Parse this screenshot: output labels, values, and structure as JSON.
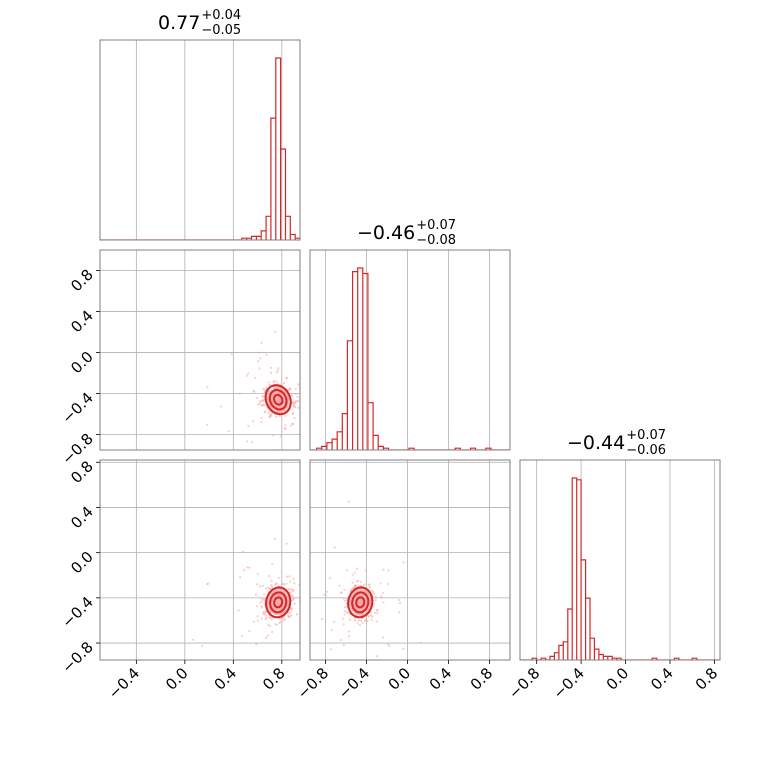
{
  "colors": {
    "line": "#d62728",
    "grid": "#b0b0b0",
    "frame": "#808080",
    "scatter": "#f4a6a6"
  },
  "titles": [
    {
      "main": "0.77",
      "plus": "+0.04",
      "minus": "−0.05"
    },
    {
      "main": "−0.46",
      "plus": "+0.07",
      "minus": "−0.08"
    },
    {
      "main": "−0.44",
      "plus": "+0.07",
      "minus": "−0.06"
    }
  ],
  "chart_data": [
    {
      "type": "histogram",
      "panel": "diag-0",
      "xlim": [
        -0.7,
        0.95
      ],
      "x": [
        0.49,
        0.53,
        0.57,
        0.61,
        0.65,
        0.69,
        0.73,
        0.77,
        0.81,
        0.85,
        0.89,
        0.93
      ],
      "values": [
        0.01,
        0.01,
        0.02,
        0.02,
        0.05,
        0.13,
        0.67,
        1.0,
        0.5,
        0.13,
        0.03,
        0.01
      ],
      "x_ticks": [
        "−0.4",
        "0.0",
        "0.4",
        "0.8"
      ]
    },
    {
      "type": "scatter+contour",
      "panel": "row1-col0",
      "xlim": [
        -0.7,
        0.95
      ],
      "ylim": [
        -0.95,
        1.0
      ],
      "y_ticks": [
        "0.8",
        "0.4",
        "0.0",
        "−0.4",
        "−0.8"
      ],
      "density_center": [
        0.77,
        -0.46
      ]
    },
    {
      "type": "histogram",
      "panel": "diag-1",
      "xlim": [
        -0.95,
        1.0
      ],
      "x": [
        -0.86,
        -0.81,
        -0.76,
        -0.71,
        -0.66,
        -0.61,
        -0.56,
        -0.51,
        -0.46,
        -0.41,
        -0.36,
        -0.31,
        -0.26,
        -0.21,
        0.04,
        0.49,
        0.64,
        0.79
      ],
      "values": [
        0.01,
        0.02,
        0.04,
        0.06,
        0.1,
        0.2,
        0.6,
        0.98,
        1.0,
        0.97,
        0.26,
        0.08,
        0.02,
        0.01,
        0.01,
        0.01,
        0.01,
        0.01
      ],
      "x_ticks": [
        "−0.8",
        "−0.4",
        "0.0",
        "0.4",
        "0.8"
      ]
    },
    {
      "type": "scatter+contour",
      "panel": "row2-col0",
      "xlim": [
        -0.7,
        0.95
      ],
      "ylim": [
        -0.95,
        0.82
      ],
      "x_ticks": [
        "−0.4",
        "0.0",
        "0.4",
        "0.8"
      ],
      "y_ticks": [
        "0.8",
        "0.4",
        "0.0",
        "−0.4",
        "−0.8"
      ],
      "density_center": [
        0.77,
        -0.44
      ]
    },
    {
      "type": "scatter+contour",
      "panel": "row2-col1",
      "xlim": [
        -0.95,
        1.0
      ],
      "ylim": [
        -0.95,
        0.82
      ],
      "x_ticks": [
        "−0.8",
        "−0.4",
        "0.0",
        "0.4",
        "0.8"
      ],
      "density_center": [
        -0.46,
        -0.44
      ]
    },
    {
      "type": "histogram",
      "panel": "diag-2",
      "xlim": [
        -0.95,
        0.85
      ],
      "x": [
        -0.82,
        -0.74,
        -0.66,
        -0.62,
        -0.58,
        -0.54,
        -0.5,
        -0.46,
        -0.42,
        -0.38,
        -0.34,
        -0.3,
        -0.26,
        -0.22,
        -0.18,
        -0.14,
        -0.1,
        -0.06,
        0.26,
        0.46,
        0.62
      ],
      "values": [
        0.01,
        0.01,
        0.02,
        0.04,
        0.08,
        0.1,
        0.28,
        1.0,
        0.99,
        0.55,
        0.34,
        0.12,
        0.06,
        0.03,
        0.02,
        0.02,
        0.01,
        0.01,
        0.01,
        0.01,
        0.01
      ],
      "x_ticks": [
        "−0.8",
        "−0.4",
        "0.0",
        "0.4",
        "0.8"
      ]
    }
  ]
}
